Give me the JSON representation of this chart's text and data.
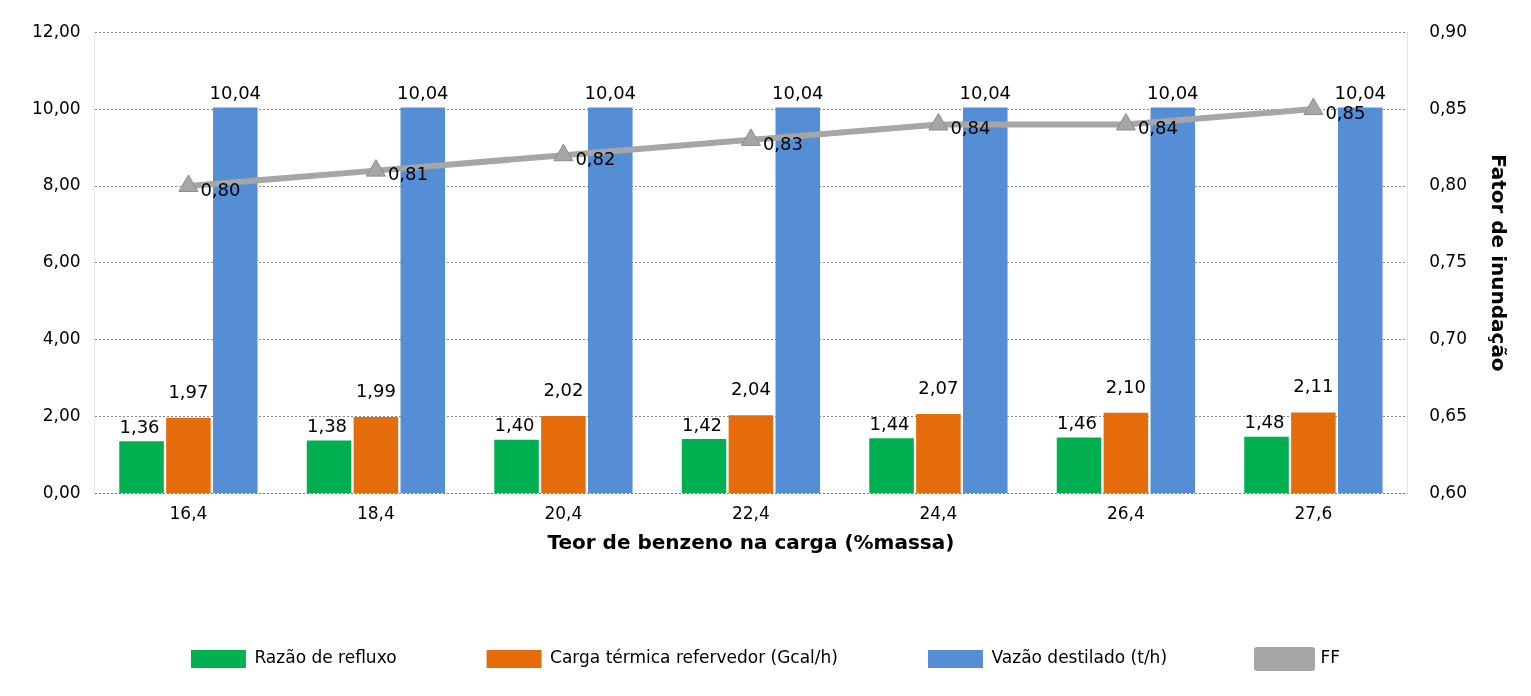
{
  "chart_data": {
    "type": "bar",
    "xlabel": "Teor de benzeno na carga (%massa)",
    "y2label": "Fator de inundação",
    "categories": [
      "16,4",
      "18,4",
      "20,4",
      "22,4",
      "24,4",
      "26,4",
      "27,6"
    ],
    "series": [
      {
        "name": "Razão de refluxo",
        "color": "#00b050",
        "values": [
          1.36,
          1.38,
          1.4,
          1.42,
          1.44,
          1.46,
          1.48
        ],
        "value_labels": [
          "1,36",
          "1,38",
          "1,40",
          "1,42",
          "1,44",
          "1,46",
          "1,48"
        ]
      },
      {
        "name": "Carga térmica refervedor (Gcal/h)",
        "color": "#e46c0a",
        "values": [
          1.97,
          1.99,
          2.02,
          2.04,
          2.07,
          2.1,
          2.11
        ],
        "value_labels": [
          "1,97",
          "1,99",
          "2,02",
          "2,04",
          "2,07",
          "2,10",
          "2,11"
        ]
      },
      {
        "name": "Vazão destilado (t/h)",
        "color": "#558ed5",
        "values": [
          10.04,
          10.04,
          10.04,
          10.04,
          10.04,
          10.04,
          10.04
        ],
        "value_labels": [
          "10,04",
          "10,04",
          "10,04",
          "10,04",
          "10,04",
          "10,04",
          "10,04"
        ]
      },
      {
        "name": "FF",
        "type": "line",
        "axis": "y2",
        "color": "#a6a6a6",
        "marker": "triangle",
        "values": [
          0.8,
          0.81,
          0.82,
          0.83,
          0.84,
          0.84,
          0.85
        ],
        "value_labels": [
          "0,80",
          "0,81",
          "0,82",
          "0,83",
          "0,84",
          "0,84",
          "0,85"
        ]
      }
    ],
    "ylim": [
      0,
      12
    ],
    "yticks": [
      {
        "value": 0,
        "label": "0,00"
      },
      {
        "value": 2,
        "label": "2,00"
      },
      {
        "value": 4,
        "label": "4,00"
      },
      {
        "value": 6,
        "label": "6,00"
      },
      {
        "value": 8,
        "label": "8,00"
      },
      {
        "value": 10,
        "label": "10,00"
      },
      {
        "value": 12,
        "label": "12,00"
      }
    ],
    "y2lim": [
      0.6,
      0.9
    ],
    "y2ticks": [
      {
        "value": 0.6,
        "label": "0,60"
      },
      {
        "value": 0.65,
        "label": "0,65"
      },
      {
        "value": 0.7,
        "label": "0,70"
      },
      {
        "value": 0.75,
        "label": "0,75"
      },
      {
        "value": 0.8,
        "label": "0,80"
      },
      {
        "value": 0.85,
        "label": "0,85"
      },
      {
        "value": 0.9,
        "label": "0,90"
      }
    ],
    "grid": "y",
    "legend": "bottom"
  }
}
